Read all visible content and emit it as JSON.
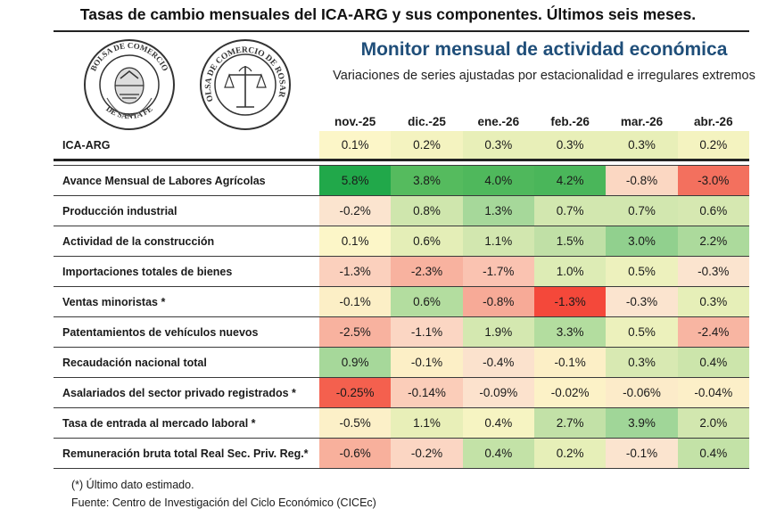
{
  "header": {
    "title": "Tasas de cambio mensuales del ICA-ARG y sus componentes. Últimos seis meses.",
    "monitor_title": "Monitor mensual de actividad económica",
    "monitor_subtitle": "Variaciones de series ajustadas por estacionalidad e irregulares extremos"
  },
  "logos": {
    "left_seal": {
      "top_text": "BOLSA DE COMERCIO",
      "bottom_text": "DE SANTA FE"
    },
    "right_seal": {
      "ring_text": "BOLSA DE COMERCIO DE ROSARIO"
    }
  },
  "table": {
    "columns": [
      "nov.-25",
      "dic.-25",
      "ene.-26",
      "feb.-26",
      "mar.-26",
      "abr.-26"
    ],
    "rows": [
      {
        "label": "ICA-ARG",
        "values": [
          "0.1%",
          "0.2%",
          "0.3%",
          "0.3%",
          "0.3%",
          "0.2%"
        ],
        "colors": [
          "#fcf6c8",
          "#f4f3c0",
          "#e8efb8",
          "#e8efb8",
          "#e8efb8",
          "#f4f3c0"
        ]
      },
      {
        "label": "Avance Mensual de Labores Agrícolas",
        "values": [
          "5.8%",
          "3.8%",
          "4.0%",
          "4.2%",
          "-0.8%",
          "-3.0%"
        ],
        "colors": [
          "#21a84a",
          "#55bb5e",
          "#4fb85c",
          "#4ab65a",
          "#fbd7c2",
          "#f3705e"
        ]
      },
      {
        "label": "Producción industrial",
        "values": [
          "-0.2%",
          "0.8%",
          "1.3%",
          "0.7%",
          "0.7%",
          "0.6%"
        ],
        "colors": [
          "#fbe4cf",
          "#cfe6ad",
          "#a6d89a",
          "#d2e7af",
          "#d2e7af",
          "#d6e8b1"
        ]
      },
      {
        "label": "Actividad de la construcción",
        "values": [
          "0.1%",
          "0.6%",
          "1.1%",
          "1.5%",
          "3.0%",
          "2.2%"
        ],
        "colors": [
          "#fcf6c8",
          "#e4eeb7",
          "#d2e7af",
          "#c0e0a6",
          "#91d08e",
          "#acda9c"
        ]
      },
      {
        "label": "Importaciones totales de bienes",
        "values": [
          "-1.3%",
          "-2.3%",
          "-1.7%",
          "1.0%",
          "0.5%",
          "-0.3%"
        ],
        "colors": [
          "#fbd0bd",
          "#f8b29f",
          "#fac3b1",
          "#ddecb5",
          "#edf1bd",
          "#fbe4cf"
        ]
      },
      {
        "label": "Ventas minoristas *",
        "values": [
          "-0.1%",
          "0.6%",
          "-0.8%",
          "-1.3%",
          "-0.3%",
          "0.3%"
        ],
        "colors": [
          "#fcefc6",
          "#b3dd9f",
          "#f7aa97",
          "#f4483a",
          "#fbe4cf",
          "#e6efb8"
        ]
      },
      {
        "label": "Patentamientos de vehículos nuevos",
        "values": [
          "-2.5%",
          "-1.1%",
          "1.9%",
          "3.3%",
          "0.5%",
          "-2.4%"
        ],
        "colors": [
          "#f8b29f",
          "#fbd6c3",
          "#d4e8b0",
          "#b3dd9f",
          "#ecf1bc",
          "#f8b5a2"
        ]
      },
      {
        "label": "Recaudación nacional total",
        "values": [
          "0.9%",
          "-0.1%",
          "-0.4%",
          "-0.1%",
          "0.3%",
          "0.4%"
        ],
        "colors": [
          "#a6d89a",
          "#fcefc6",
          "#fbe2cd",
          "#fcefc6",
          "#d8e9b2",
          "#cce5ab"
        ]
      },
      {
        "label": "Asalariados del sector privado registrados *",
        "values": [
          "-0.25%",
          "-0.14%",
          "-0.09%",
          "-0.02%",
          "-0.06%",
          "-0.04%"
        ],
        "colors": [
          "#f4604e",
          "#fbcdb9",
          "#fce2cd",
          "#fcf2c7",
          "#fcebc9",
          "#fcefc8"
        ]
      },
      {
        "label": "Tasa de entrada al mercado laboral *",
        "values": [
          "-0.5%",
          "1.1%",
          "0.4%",
          "2.7%",
          "3.9%",
          "2.0%"
        ],
        "colors": [
          "#fcf0c8",
          "#e8efb8",
          "#f6f4c2",
          "#c2e1a7",
          "#a0d698",
          "#d2e7af"
        ]
      },
      {
        "label": "Remuneración bruta total Real Sec. Priv. Reg.*",
        "values": [
          "-0.6%",
          "-0.2%",
          "0.4%",
          "0.2%",
          "-0.1%",
          "0.4%"
        ],
        "colors": [
          "#f8b09c",
          "#fbd6c3",
          "#c3e2a7",
          "#e6efb8",
          "#fbe4cf",
          "#c3e2a7"
        ]
      }
    ]
  },
  "footnotes": {
    "note": "(*) Último dato estimado.",
    "source": "Fuente: Centro de Investigación del Ciclo Económico (CICEc)"
  }
}
